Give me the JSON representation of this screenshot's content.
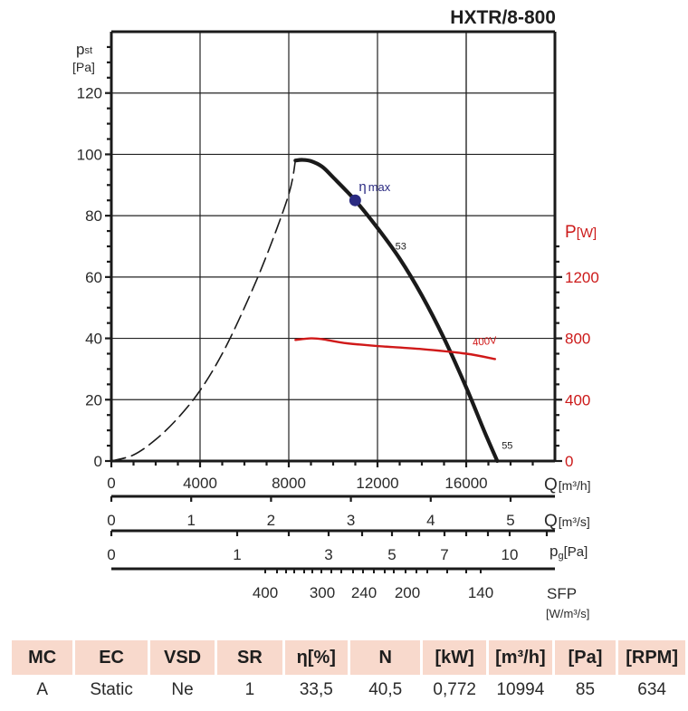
{
  "title": "HXTR/8-800",
  "chart_data": {
    "type": "line",
    "title": "HXTR/8-800",
    "xlabel": "Q",
    "xlabel_unit": "[m³/h]",
    "ylabel": "p",
    "ylabel_sub": "st",
    "ylabel_unit": "[Pa]",
    "y2label": "P",
    "y2label_unit": "[W]",
    "xlim": [
      0,
      20000
    ],
    "ylim": [
      0,
      140
    ],
    "y2lim": [
      0,
      2800
    ],
    "x_ticks": [
      0,
      4000,
      8000,
      12000,
      16000
    ],
    "x_tick_labels": [
      "0",
      "4000",
      "8000",
      "12000",
      "16000"
    ],
    "y_ticks": [
      0,
      20,
      40,
      60,
      80,
      100,
      120
    ],
    "y_tick_labels": [
      "0",
      "20",
      "40",
      "60",
      "80",
      "100",
      "120"
    ],
    "y2_ticks": [
      0,
      400,
      800,
      1200
    ],
    "y2_tick_labels": [
      "0",
      "400",
      "800",
      "1200"
    ],
    "grid": true,
    "colors": {
      "pressure": "#1a1a1a",
      "power": "#d01919",
      "eta_marker": "#2b2b82",
      "y2_axis": "#cc1a1a"
    },
    "series": [
      {
        "name": "pressure curve",
        "style": "solid",
        "x": [
          8300,
          8600,
          9000,
          9500,
          10000,
          10994,
          12000,
          13000,
          14000,
          15000,
          16000,
          16800,
          17400
        ],
        "y": [
          98,
          98.2,
          97.8,
          96,
          92.5,
          85,
          76,
          66,
          54,
          40,
          24,
          10,
          0
        ]
      },
      {
        "name": "unstable region",
        "style": "dashed",
        "x": [
          0,
          1000,
          2000,
          3000,
          4000,
          5000,
          6000,
          7000,
          8000,
          8300
        ],
        "y": [
          0,
          2,
          7,
          14,
          23,
          35,
          50,
          67,
          87,
          98
        ]
      },
      {
        "name": "400V",
        "axis": "y2",
        "style": "solid",
        "x": [
          8300,
          9000,
          9500,
          10500,
          12000,
          14000,
          16000,
          17300
        ],
        "y": [
          790,
          800,
          795,
          770,
          750,
          730,
          700,
          665
        ]
      }
    ],
    "annotations": [
      {
        "text": "η",
        "sub": "max",
        "x": 10994,
        "y": 85,
        "marker": true
      },
      {
        "text": "53",
        "x": 12800,
        "y": 69
      },
      {
        "text": "55",
        "x": 17600,
        "y": 4
      },
      {
        "text": "400V",
        "x": 16300,
        "y": 37.5
      }
    ],
    "secondary_scales": [
      {
        "label": "Q",
        "unit": "[m³/s]",
        "ticks": [
          0,
          1,
          2,
          3,
          4,
          5
        ],
        "tick_labels": [
          "0",
          "1",
          "2",
          "3",
          "4",
          "5"
        ]
      },
      {
        "label": "p",
        "sub": "g",
        "unit": "[Pa]",
        "ticks": [
          0,
          1,
          3,
          5,
          7,
          10
        ],
        "tick_labels": [
          "0",
          "1",
          "3",
          "5",
          "7",
          "10"
        ]
      },
      {
        "label": "SFP",
        "unit": "[W/m³/s]",
        "ticks": [
          400,
          300,
          240,
          200,
          140
        ],
        "tick_labels": [
          "400",
          "300",
          "240",
          "200",
          "140"
        ]
      }
    ]
  },
  "table": {
    "headers": [
      "MC",
      "EC",
      "VSD",
      "SR",
      "η[%]",
      "N",
      "[kW]",
      "[m³/h]",
      "[Pa]",
      "[RPM]"
    ],
    "values": [
      "A",
      "Static",
      "Ne",
      "1",
      "33,5",
      "40,5",
      "0,772",
      "10994",
      "85",
      "634"
    ]
  }
}
